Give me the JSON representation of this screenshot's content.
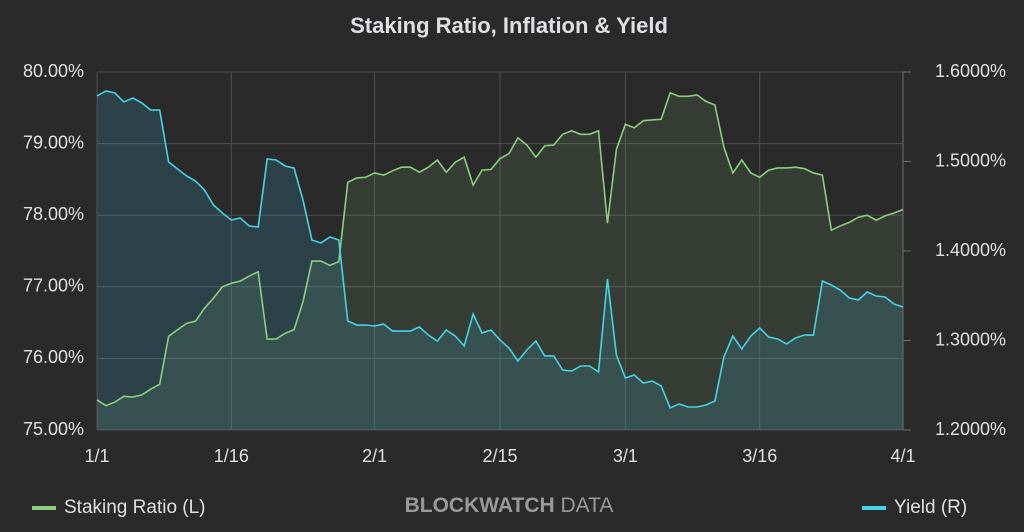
{
  "chart_data": {
    "type": "line",
    "title": "Staking Ratio, Inflation & Yield",
    "categories": [
      "1/1",
      null,
      null,
      null,
      null,
      null,
      null,
      null,
      null,
      null,
      null,
      null,
      null,
      null,
      null,
      "1/16",
      null,
      null,
      null,
      null,
      null,
      null,
      null,
      null,
      null,
      null,
      null,
      null,
      null,
      null,
      null,
      "2/1",
      null,
      null,
      null,
      null,
      null,
      null,
      null,
      null,
      null,
      null,
      null,
      null,
      null,
      "2/15",
      null,
      null,
      null,
      null,
      null,
      null,
      null,
      null,
      null,
      null,
      null,
      null,
      null,
      "3/1",
      null,
      null,
      null,
      null,
      null,
      null,
      null,
      null,
      null,
      null,
      null,
      null,
      null,
      null,
      "3/16",
      null,
      null,
      null,
      null,
      null,
      null,
      null,
      null,
      null,
      null,
      null,
      null,
      null,
      null,
      null,
      "4/1"
    ],
    "series": [
      {
        "name": "Staking Ratio (L)",
        "color": "#8ccf7e",
        "axis": "y",
        "values": [
          75.42,
          75.34,
          75.39,
          75.47,
          75.46,
          75.49,
          75.57,
          75.64,
          76.31,
          76.4,
          76.49,
          76.52,
          76.7,
          76.84,
          77.0,
          77.05,
          77.08,
          77.15,
          77.21,
          76.27,
          76.27,
          76.35,
          76.4,
          76.79,
          77.36,
          77.36,
          77.3,
          77.35,
          78.46,
          78.52,
          78.53,
          78.59,
          78.56,
          78.62,
          78.67,
          78.67,
          78.6,
          78.67,
          78.77,
          78.6,
          78.74,
          78.81,
          78.42,
          78.63,
          78.64,
          78.79,
          78.86,
          79.08,
          78.98,
          78.81,
          78.97,
          78.98,
          79.13,
          79.18,
          79.13,
          79.13,
          79.18,
          77.89,
          78.92,
          79.27,
          79.22,
          79.32,
          79.33,
          79.34,
          79.71,
          79.66,
          79.66,
          79.68,
          79.59,
          79.54,
          78.95,
          78.59,
          78.77,
          78.59,
          78.53,
          78.63,
          78.66,
          78.66,
          78.67,
          78.65,
          78.59,
          78.56,
          77.79,
          77.85,
          77.9,
          77.97,
          78.0,
          77.93,
          77.99,
          78.03,
          78.08
        ]
      },
      {
        "name": "Yield (R)",
        "color": "#45d3e8",
        "axis": "y2",
        "values": [
          1.5732,
          1.5788,
          1.5765,
          1.5665,
          1.5709,
          1.5654,
          1.5575,
          1.5575,
          1.4994,
          1.4916,
          1.4838,
          1.4782,
          1.4682,
          1.4514,
          1.4425,
          1.4346,
          1.4369,
          1.4279,
          1.4268,
          1.5028,
          1.5017,
          1.495,
          1.4927,
          1.457,
          1.4123,
          1.4089,
          1.4156,
          1.4123,
          1.3218,
          1.3173,
          1.3173,
          1.3162,
          1.3184,
          1.3106,
          1.3106,
          1.3106,
          1.3151,
          1.3061,
          1.2994,
          1.3117,
          1.305,
          1.2939,
          1.3296,
          1.3084,
          1.3117,
          1.3006,
          1.2916,
          1.2771,
          1.2894,
          1.2994,
          1.2827,
          1.2827,
          1.267,
          1.2659,
          1.2715,
          1.2715,
          1.2648,
          1.3687,
          1.2838,
          1.2581,
          1.2615,
          1.2525,
          1.2547,
          1.2492,
          1.2246,
          1.2291,
          1.2257,
          1.2257,
          1.2279,
          1.2324,
          1.2816,
          1.305,
          1.2905,
          1.305,
          1.314,
          1.3039,
          1.3017,
          1.2961,
          1.3028,
          1.3061,
          1.3061,
          1.3665,
          1.362,
          1.3564,
          1.3475,
          1.3453,
          1.3542,
          1.3497,
          1.3486,
          1.3408,
          1.3374
        ]
      }
    ],
    "ylim": [
      75,
      80
    ],
    "yticks": [
      {
        "value": 75,
        "label": "75.00%"
      },
      {
        "value": 76,
        "label": "76.00%"
      },
      {
        "value": 77,
        "label": "77.00%"
      },
      {
        "value": 78,
        "label": "78.00%"
      },
      {
        "value": 79,
        "label": "79.00%"
      },
      {
        "value": 80,
        "label": "80.00%"
      }
    ],
    "y2lim": [
      1.2,
      1.6
    ],
    "y2ticks": [
      {
        "value": 1.2,
        "label": "1.2000%"
      },
      {
        "value": 1.3,
        "label": "1.3000%"
      },
      {
        "value": 1.4,
        "label": "1.4000%"
      },
      {
        "value": 1.5,
        "label": "1.5000%"
      },
      {
        "value": 1.6,
        "label": "1.6000%"
      }
    ],
    "grid": true,
    "area": true,
    "legend": "bottom",
    "watermark": [
      "BLOCKWATCH",
      "DATA"
    ]
  }
}
